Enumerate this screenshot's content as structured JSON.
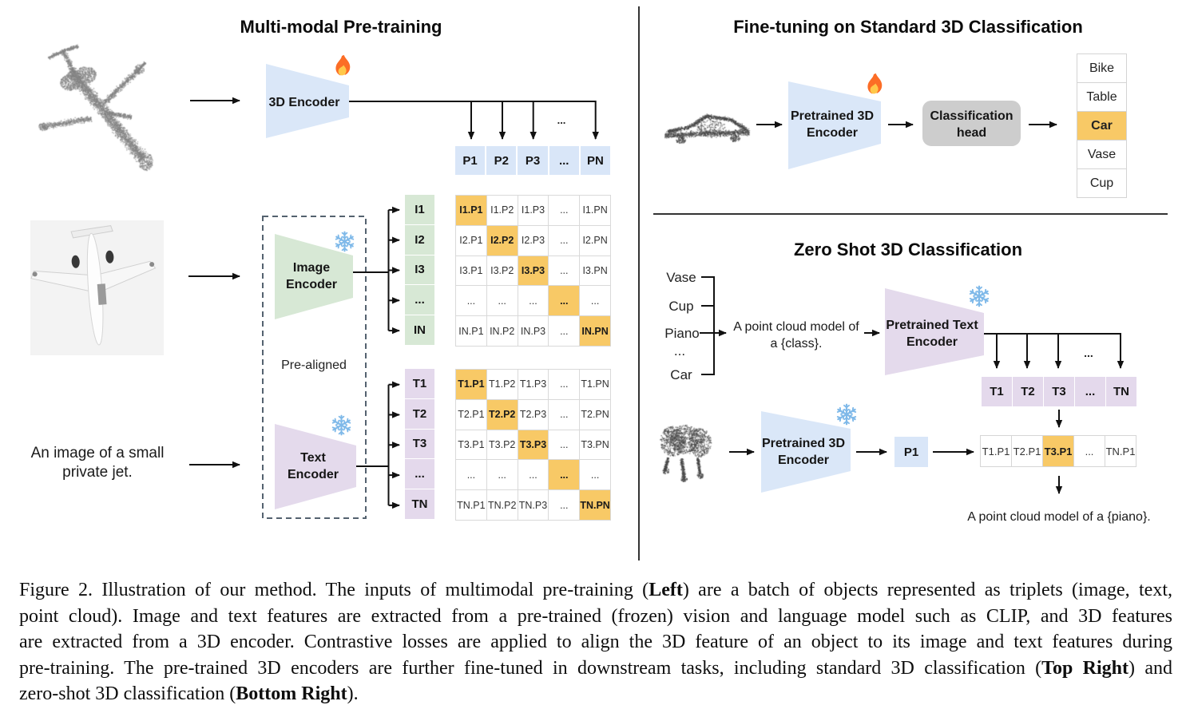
{
  "left": {
    "title": "Multi-modal Pre-training",
    "encoder_3d_label": "3D Encoder",
    "image_encoder": {
      "line1": "Image",
      "line2": "Encoder"
    },
    "text_encoder": {
      "line1": "Text",
      "line2": "Encoder"
    },
    "pre_aligned_label": "Pre-aligned",
    "input_text": {
      "line1": "An image of a small",
      "line2": "private jet."
    },
    "dots_above_p": "...",
    "p_row": [
      "P1",
      "P2",
      "P3",
      "...",
      "PN"
    ],
    "i_labels": [
      "I1",
      "I2",
      "I3",
      "...",
      "IN"
    ],
    "t_labels": [
      "T1",
      "T2",
      "T3",
      "...",
      "TN"
    ],
    "i_matrix": [
      [
        "I1.P1",
        "I1.P2",
        "I1.P3",
        "...",
        "I1.PN"
      ],
      [
        "I2.P1",
        "I2.P2",
        "I2.P3",
        "...",
        "I2.PN"
      ],
      [
        "I3.P1",
        "I3.P2",
        "I3.P3",
        "...",
        "I3.PN"
      ],
      [
        "...",
        "...",
        "...",
        "...",
        "..."
      ],
      [
        "IN.P1",
        "IN.P2",
        "IN.P3",
        "...",
        "IN.PN"
      ]
    ],
    "t_matrix": [
      [
        "T1.P1",
        "T1.P2",
        "T1.P3",
        "...",
        "T1.PN"
      ],
      [
        "T2.P1",
        "T2.P2",
        "T2.P3",
        "...",
        "T2.PN"
      ],
      [
        "T3.P1",
        "T3.P2",
        "T3.P3",
        "...",
        "T3.PN"
      ],
      [
        "...",
        "...",
        "...",
        "...",
        "..."
      ],
      [
        "TN.P1",
        "TN.P2",
        "TN.P3",
        "...",
        "TN.PN"
      ]
    ]
  },
  "top_right": {
    "title": "Fine-tuning on Standard 3D Classification",
    "encoder": {
      "line1": "Pretrained 3D",
      "line2": "Encoder"
    },
    "head": {
      "line1": "Classification",
      "line2": "head"
    },
    "classes": [
      "Bike",
      "Table",
      "Car",
      "Vase",
      "Cup"
    ],
    "highlight_index": 2
  },
  "bottom_right": {
    "title": "Zero Shot 3D Classification",
    "class_prompts": [
      "Vase",
      "Cup",
      "Piano",
      "...",
      "Car"
    ],
    "prompt": {
      "line1": "A point cloud model of",
      "line2": "a {class}."
    },
    "text_encoder": {
      "line1": "Pretrained Text",
      "line2": "Encoder"
    },
    "encoder_3d": {
      "line1": "Pretrained 3D",
      "line2": "Encoder"
    },
    "p1_label": "P1",
    "dots_above_tn": "...",
    "t_row": [
      "T1",
      "T2",
      "T3",
      "...",
      "TN"
    ],
    "result_row": [
      "T1.P1",
      "T2.P1",
      "T3.P1",
      "...",
      "TN.P1"
    ],
    "result_highlight_index": 2,
    "final_text": "A point cloud model of a {piano}."
  },
  "colors": {
    "blue": "#DAE7F8",
    "green": "#D7E8D5",
    "purple": "#E4D9EC",
    "orange": "#F8C966",
    "head_gray": "#CDCDCD"
  },
  "caption": {
    "lines": [
      {
        "justify": true,
        "segments": [
          {
            "text": "Figure 2. Illustration of our method. The inputs of multimodal pre-training ("
          },
          {
            "text": "Left",
            "bold": true
          },
          {
            "text": ") are a batch of objects represented as triplets (image, text,"
          }
        ]
      },
      {
        "justify": true,
        "segments": [
          {
            "text": "point cloud). Image and text features are extracted from a pre-trained (frozen) vision and language model such as CLIP, and 3D features"
          }
        ]
      },
      {
        "justify": true,
        "segments": [
          {
            "text": "are extracted from a 3D encoder. Contrastive losses are applied to align the 3D feature of an object to its image and text features during"
          }
        ]
      },
      {
        "justify": true,
        "segments": [
          {
            "text": "pre-training. The pre-trained 3D encoders are further fine-tuned in downstream tasks, including standard 3D classification ("
          },
          {
            "text": "Top Right",
            "bold": true
          },
          {
            "text": ") and"
          }
        ]
      },
      {
        "justify": false,
        "segments": [
          {
            "text": "zero-shot 3D classification ("
          },
          {
            "text": "Bottom Right",
            "bold": true
          },
          {
            "text": ")."
          }
        ]
      }
    ]
  }
}
